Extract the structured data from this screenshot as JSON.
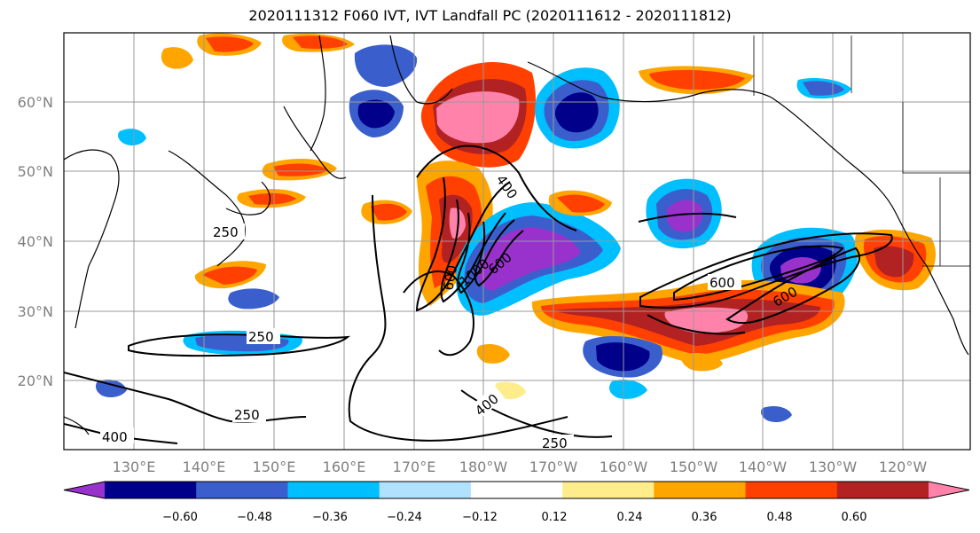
{
  "title": "2020111312 F060 IVT, IVT Landfall PC (2020111612 - 2020111812)",
  "lon_labels": [
    "130°E",
    "140°E",
    "150°E",
    "160°E",
    "170°E",
    "180°W",
    "170°W",
    "160°W",
    "150°W",
    "140°W",
    "130°W",
    "120°W"
  ],
  "lat_labels": [
    "60°N",
    "50°N",
    "40°N",
    "30°N",
    "20°N"
  ],
  "contour_labels": [
    "250",
    "250",
    "250",
    "250",
    "400",
    "400",
    "400",
    "600",
    "600",
    "600",
    "600",
    "1000"
  ],
  "colorbar": {
    "colors": [
      "#9932CC",
      "#00008B",
      "#3A5FCD",
      "#00BFFF",
      "#B0E2FF",
      "#FFFFFF",
      "#FFEC8B",
      "#FFA500",
      "#FF4000",
      "#B22222",
      "#FF82AB"
    ],
    "tick_labels": [
      "−0.60",
      "−0.48",
      "−0.36",
      "−0.24",
      "−0.12",
      "0.12",
      "0.24",
      "0.36",
      "0.48",
      "0.60"
    ]
  }
}
